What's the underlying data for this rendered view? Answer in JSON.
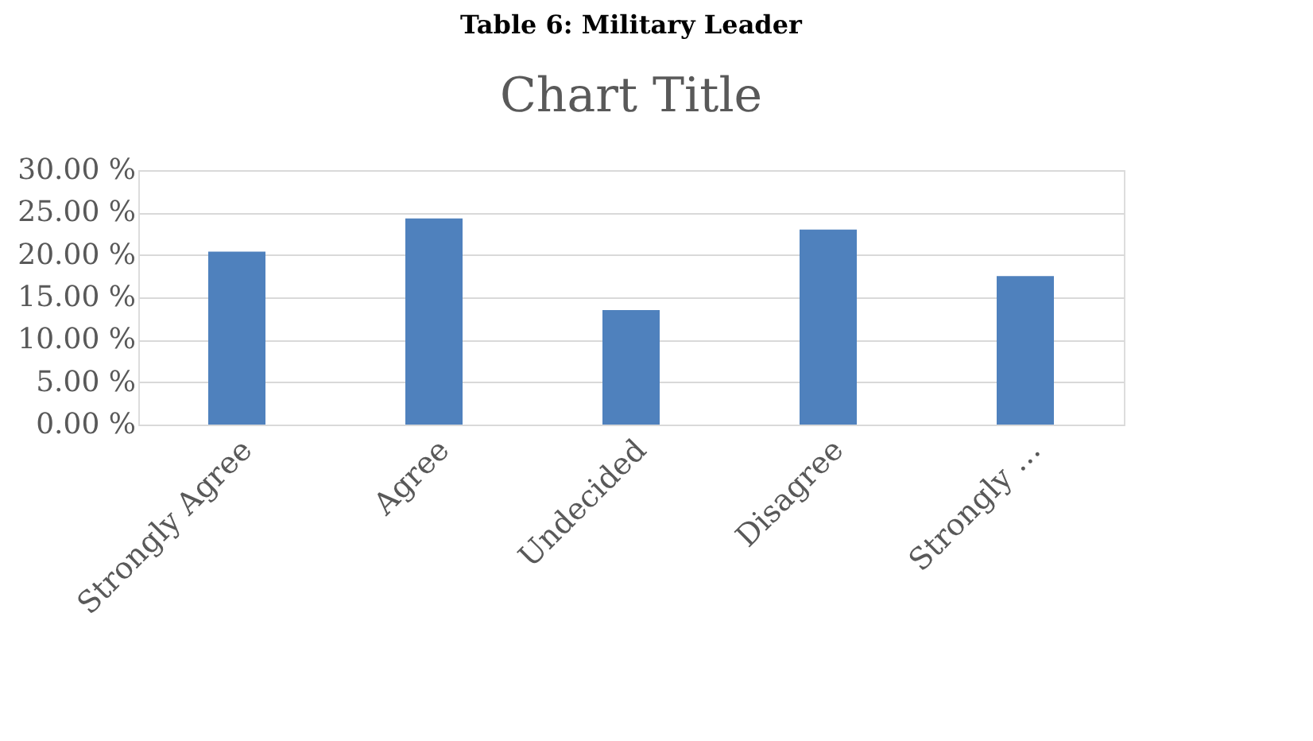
{
  "chart_data": {
    "type": "bar",
    "title": "Chart Title",
    "annotations": [
      "Table 6: Military Leader"
    ],
    "categories": [
      "Strongly Agree",
      "Agree",
      "Undecided",
      "Disagree",
      "Strongly …"
    ],
    "values": [
      20.4,
      24.3,
      13.5,
      23.0,
      17.5
    ],
    "color": "#4f81bd",
    "ylim": [
      0,
      30
    ],
    "yticks": [
      {
        "value": 0,
        "label": "0.00 %"
      },
      {
        "value": 5,
        "label": "5.00 %"
      },
      {
        "value": 10,
        "label": "10.00 %"
      },
      {
        "value": 15,
        "label": "15.00 %"
      },
      {
        "value": 20,
        "label": "20.00 %"
      },
      {
        "value": 25,
        "label": "25.00 %"
      },
      {
        "value": 30,
        "label": "30.00 %"
      }
    ],
    "grid": "y"
  }
}
